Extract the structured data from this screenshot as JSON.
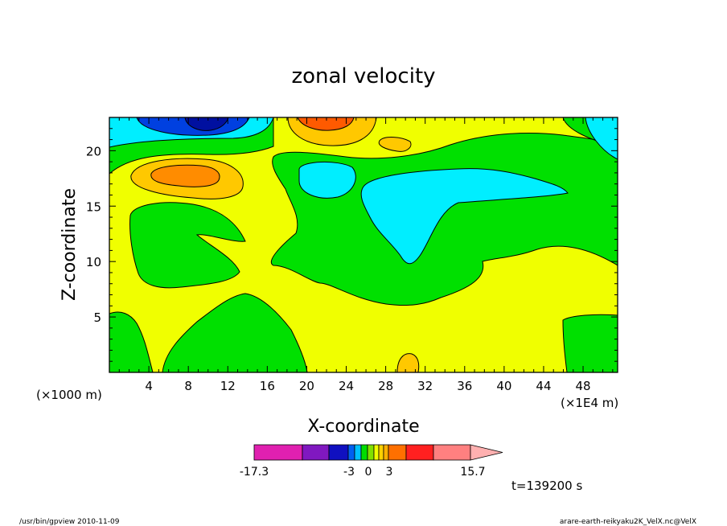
{
  "chart_data": {
    "type": "heatmap",
    "title": "zonal velocity",
    "xlabel": "X-coordinate",
    "ylabel": "Z-coordinate",
    "x_unit_note": "(×1000 m)",
    "x_scale_note": "(×1E4 m)",
    "xlim": [
      0,
      51.5
    ],
    "ylim": [
      0,
      23
    ],
    "xticks": [
      4,
      8,
      12,
      16,
      20,
      24,
      28,
      32,
      36,
      40,
      44,
      48
    ],
    "yticks": [
      5,
      10,
      15,
      20
    ],
    "colorbar": {
      "levels": [
        -17.3,
        -15,
        -12.5,
        -10,
        -3,
        -2,
        -1,
        0,
        1,
        2,
        3,
        5,
        7,
        10,
        15.7
      ],
      "labels": [
        "-17.3",
        "-3",
        "0",
        "3",
        "15.7"
      ],
      "label_values": [
        -17.3,
        -3,
        0,
        3,
        15.7
      ],
      "colors": [
        "#e020b0",
        "#8018c0",
        "#1010c0",
        "#0060f0",
        "#00c0ff",
        "#00dd00",
        "#80e000",
        "#f0ff00",
        "#ffd000",
        "#ffb000",
        "#ff7000",
        "#ff2020",
        "#ff8080",
        "#ffb0b0"
      ]
    },
    "time_label": "t=139200 s",
    "region_colors": {
      "background": "#f0ff00",
      "weak_negative": "#00e000",
      "moderate_negative": "#00eeff",
      "strong_negative": "#0040e0",
      "very_strong_negative": "#0010a0",
      "weak_positive": "#ffc800",
      "moderate_positive": "#ff8c00",
      "strong_positive": "#ff5a00"
    }
  },
  "footer": {
    "left": "/usr/bin/gpview  2010-11-09",
    "right": "arare-earth-reikyaku2K_VelX.nc@VelX"
  }
}
